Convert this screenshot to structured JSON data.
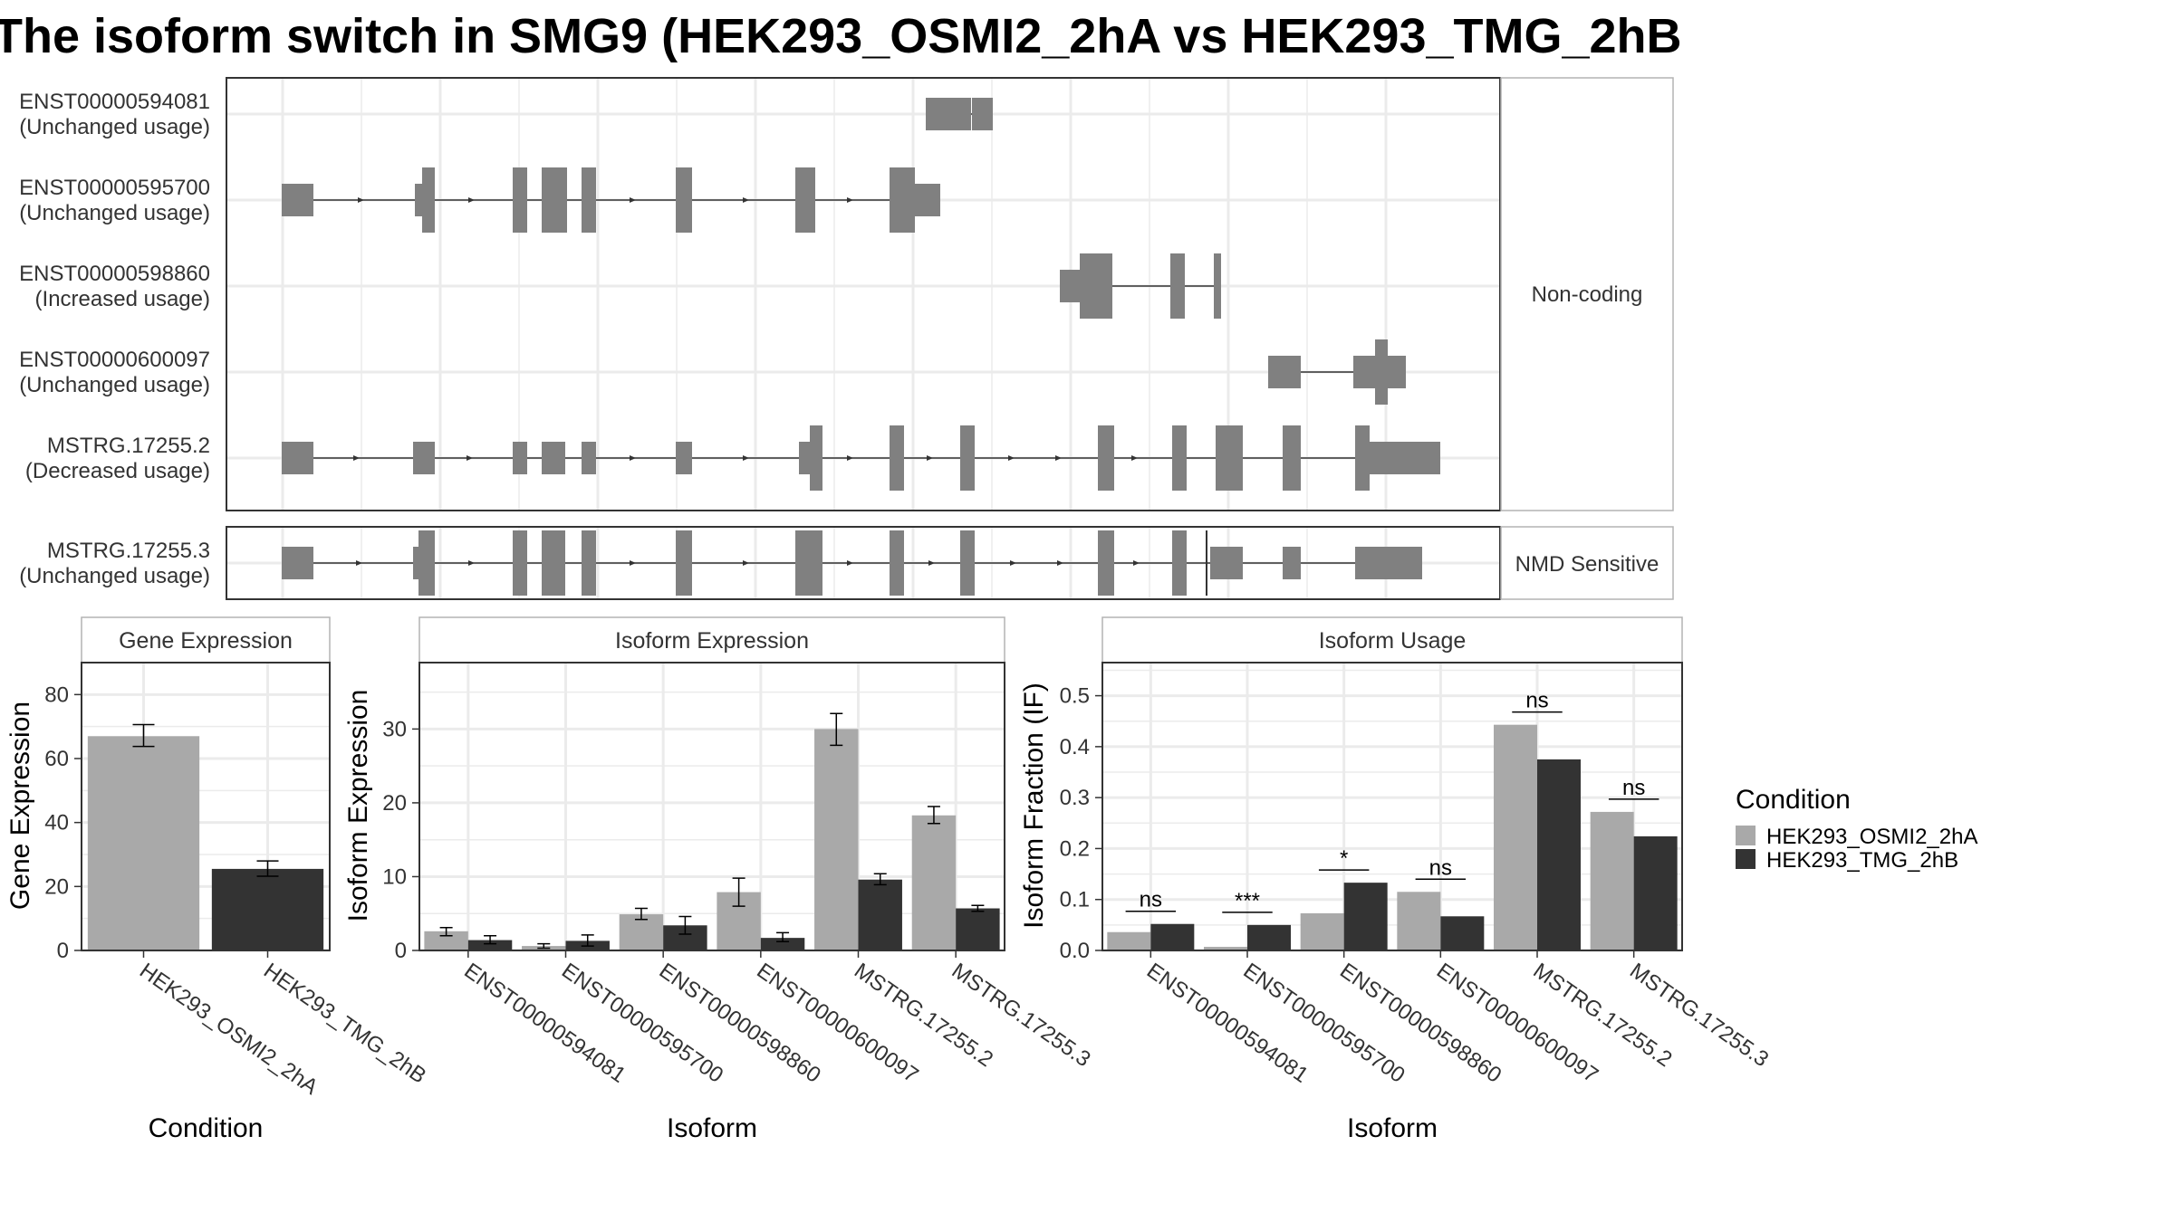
{
  "title": "The isoform switch in SMG9 (HEK293_OSMI2_2hA vs HEK293_TMG_2hB",
  "colors": {
    "condition_a": "#a9a9a9",
    "condition_b": "#333333",
    "exon": "#808080",
    "panel_border": "#333333",
    "strip_border": "#b3b3b3",
    "grid": "#ebebeb"
  },
  "legend": {
    "title": "Condition",
    "items": [
      "HEK293_OSMI2_2hA",
      "HEK293_TMG_2hB"
    ]
  },
  "chart_data": [
    {
      "type": "gene-structure",
      "tracks": [
        {
          "name": "ENST00000594081",
          "status": "(Unchanged usage)",
          "group": "Non-coding",
          "exons": [
            {
              "x": [
                1022,
                1072
              ],
              "h": 36
            },
            {
              "x": [
                1073,
                1096
              ],
              "h": 36
            }
          ],
          "arrows": []
        },
        {
          "name": "ENST00000595700",
          "status": "(Unchanged usage)",
          "group": "Non-coding",
          "exons": [
            {
              "x": [
                311,
                346
              ],
              "h": 36
            },
            {
              "x": [
                458,
                466
              ],
              "h": 36
            },
            {
              "x": [
                466,
                480
              ],
              "h": 72
            },
            {
              "x": [
                566,
                582
              ],
              "h": 72
            },
            {
              "x": [
                598,
                626
              ],
              "h": 72
            },
            {
              "x": [
                642,
                658
              ],
              "h": 72
            },
            {
              "x": [
                746,
                764
              ],
              "h": 72
            },
            {
              "x": [
                878,
                900
              ],
              "h": 72
            },
            {
              "x": [
                982,
                1010
              ],
              "h": 72
            },
            {
              "x": [
                1010,
                1038
              ],
              "h": 36
            }
          ],
          "arrows": [
            400,
            522,
            612,
            700,
            825,
            940
          ]
        },
        {
          "name": "ENST00000598860",
          "status": "(Increased usage)",
          "group": "Non-coding",
          "exons": [
            {
              "x": [
                1170,
                1192
              ],
              "h": 36
            },
            {
              "x": [
                1192,
                1228
              ],
              "h": 72
            },
            {
              "x": [
                1292,
                1308
              ],
              "h": 72
            },
            {
              "x": [
                1340,
                1348
              ],
              "h": 72
            }
          ],
          "arrows": []
        },
        {
          "name": "ENST00000600097",
          "status": "(Unchanged usage)",
          "group": "Non-coding",
          "exons": [
            {
              "x": [
                1400,
                1436
              ],
              "h": 36
            },
            {
              "x": [
                1494,
                1518
              ],
              "h": 36
            },
            {
              "x": [
                1518,
                1532
              ],
              "h": 72
            },
            {
              "x": [
                1532,
                1552
              ],
              "h": 36
            }
          ],
          "arrows": []
        },
        {
          "name": "MSTRG.17255.2",
          "status": "(Decreased usage)",
          "group": "Non-coding",
          "exons": [
            {
              "x": [
                311,
                346
              ],
              "h": 36
            },
            {
              "x": [
                456,
                480
              ],
              "h": 36
            },
            {
              "x": [
                566,
                582
              ],
              "h": 36
            },
            {
              "x": [
                598,
                624
              ],
              "h": 36
            },
            {
              "x": [
                642,
                658
              ],
              "h": 36
            },
            {
              "x": [
                746,
                764
              ],
              "h": 36
            },
            {
              "x": [
                882,
                894
              ],
              "h": 36
            },
            {
              "x": [
                894,
                908
              ],
              "h": 72
            },
            {
              "x": [
                982,
                998
              ],
              "h": 72
            },
            {
              "x": [
                1060,
                1076
              ],
              "h": 72
            },
            {
              "x": [
                1212,
                1230
              ],
              "h": 72
            },
            {
              "x": [
                1294,
                1310
              ],
              "h": 72
            },
            {
              "x": [
                1342,
                1372
              ],
              "h": 72
            },
            {
              "x": [
                1416,
                1436
              ],
              "h": 72
            },
            {
              "x": [
                1496,
                1512
              ],
              "h": 72
            },
            {
              "x": [
                1512,
                1590
              ],
              "h": 36
            }
          ],
          "arrows": [
            395,
            520,
            610,
            700,
            825,
            940,
            1028,
            1118,
            1170,
            1254
          ]
        },
        {
          "name": "MSTRG.17255.3",
          "status": "(Unchanged usage)",
          "group": "NMD Sensitive",
          "exons": [
            {
              "x": [
                311,
                346
              ],
              "h": 36
            },
            {
              "x": [
                456,
                462
              ],
              "h": 36
            },
            {
              "x": [
                462,
                480
              ],
              "h": 72
            },
            {
              "x": [
                566,
                582
              ],
              "h": 72
            },
            {
              "x": [
                598,
                624
              ],
              "h": 72
            },
            {
              "x": [
                642,
                658
              ],
              "h": 72
            },
            {
              "x": [
                746,
                764
              ],
              "h": 72
            },
            {
              "x": [
                878,
                908
              ],
              "h": 72
            },
            {
              "x": [
                982,
                998
              ],
              "h": 72
            },
            {
              "x": [
                1060,
                1076
              ],
              "h": 72
            },
            {
              "x": [
                1212,
                1230
              ],
              "h": 72
            },
            {
              "x": [
                1294,
                1310
              ],
              "h": 72
            },
            {
              "x": [
                1336,
                1372
              ],
              "h": 36
            },
            {
              "x": [
                1416,
                1436
              ],
              "h": 36
            },
            {
              "x": [
                1496,
                1570
              ],
              "h": 36
            }
          ],
          "arrows": [
            398,
            522,
            610,
            700,
            825,
            940,
            1030,
            1120,
            1172,
            1256
          ],
          "cds_end": 1332
        }
      ],
      "groups": [
        "Non-coding",
        "NMD Sensitive"
      ]
    },
    {
      "type": "bar",
      "title": "Gene Expression",
      "ylabel": "Gene Expression",
      "xlabel": "Condition",
      "ylim": [
        0,
        90
      ],
      "yticks": [
        0,
        20,
        40,
        60,
        80
      ],
      "categories": [
        "HEK293_OSMI2_2hA",
        "HEK293_TMG_2hB"
      ],
      "values": [
        67.0,
        25.5
      ],
      "errors": [
        [
          63.8,
          70.6
        ],
        [
          23.2,
          28.0
        ]
      ]
    },
    {
      "type": "bar",
      "title": "Isoform Expression",
      "ylabel": "Isoform Expression",
      "xlabel": "Isoform",
      "ylim": [
        0,
        39
      ],
      "yticks": [
        0,
        10,
        20,
        30
      ],
      "categories": [
        "ENST00000594081",
        "ENST00000595700",
        "ENST00000598860",
        "ENST00000600097",
        "MSTRG.17255.2",
        "MSTRG.17255.3"
      ],
      "series": [
        {
          "name": "HEK293_OSMI2_2hA",
          "values": [
            2.6,
            0.6,
            4.9,
            7.9,
            30.0,
            18.3
          ],
          "errors": [
            [
              2.0,
              3.1
            ],
            [
              0.3,
              0.9
            ],
            [
              4.2,
              5.7
            ],
            [
              6.0,
              9.8
            ],
            [
              27.8,
              32.1
            ],
            [
              17.2,
              19.5
            ]
          ]
        },
        {
          "name": "HEK293_TMG_2hB",
          "values": [
            1.4,
            1.3,
            3.4,
            1.7,
            9.6,
            5.7
          ],
          "errors": [
            [
              0.9,
              2.0
            ],
            [
              0.6,
              2.1
            ],
            [
              2.2,
              4.6
            ],
            [
              1.2,
              2.4
            ],
            [
              8.9,
              10.4
            ],
            [
              5.3,
              6.1
            ]
          ]
        }
      ]
    },
    {
      "type": "bar",
      "title": "Isoform Usage",
      "ylabel": "Isoform Fraction (IF)",
      "xlabel": "Isoform",
      "ylim": [
        0,
        0.565
      ],
      "yticks": [
        0.0,
        0.1,
        0.2,
        0.3,
        0.4,
        0.5
      ],
      "categories": [
        "ENST00000594081",
        "ENST00000595700",
        "ENST00000598860",
        "ENST00000600097",
        "MSTRG.17255.2",
        "MSTRG.17255.3"
      ],
      "series": [
        {
          "name": "HEK293_OSMI2_2hA",
          "values": [
            0.036,
            0.007,
            0.073,
            0.115,
            0.443,
            0.272
          ]
        },
        {
          "name": "HEK293_TMG_2hB",
          "values": [
            0.052,
            0.05,
            0.133,
            0.067,
            0.375,
            0.224
          ]
        }
      ],
      "significance": [
        "ns",
        "***",
        "*",
        "ns",
        "ns",
        "ns"
      ]
    }
  ]
}
